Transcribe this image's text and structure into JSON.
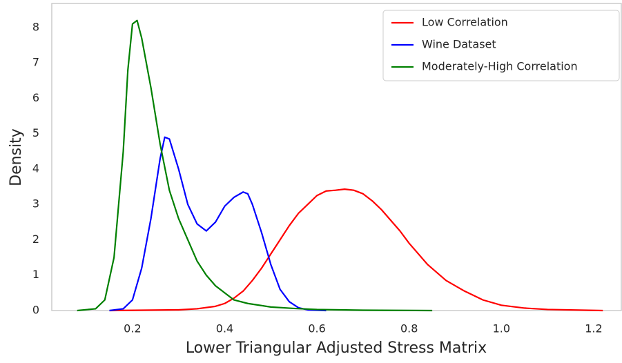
{
  "chart_data": {
    "type": "line",
    "xlabel": "Lower Triangular Adjusted Stress Matrix",
    "ylabel": "Density",
    "xlim": [
      0.025,
      1.26
    ],
    "ylim": [
      0,
      8.68
    ],
    "xticks": [
      0.2,
      0.4,
      0.6,
      0.8,
      {
        "value": 1,
        "label": "1.0"
      },
      1.2
    ],
    "yticks": [
      0,
      1,
      2,
      3,
      4,
      5,
      6,
      7,
      8
    ],
    "grid": false,
    "legend": "upper right",
    "series": [
      {
        "name": "Low Correlation",
        "color": "#ff0000",
        "x": [
          0.15,
          0.3,
          0.34,
          0.38,
          0.4,
          0.42,
          0.44,
          0.46,
          0.48,
          0.5,
          0.52,
          0.54,
          0.56,
          0.58,
          0.6,
          0.62,
          0.64,
          0.66,
          0.68,
          0.7,
          0.72,
          0.74,
          0.76,
          0.78,
          0.8,
          0.84,
          0.88,
          0.92,
          0.96,
          1.0,
          1.05,
          1.1,
          1.22
        ],
        "values": [
          0,
          0.02,
          0.05,
          0.12,
          0.2,
          0.35,
          0.55,
          0.85,
          1.2,
          1.6,
          2.0,
          2.4,
          2.75,
          3.0,
          3.25,
          3.38,
          3.4,
          3.43,
          3.4,
          3.3,
          3.1,
          2.85,
          2.55,
          2.25,
          1.9,
          1.3,
          0.85,
          0.55,
          0.3,
          0.15,
          0.07,
          0.03,
          0
        ]
      },
      {
        "name": "Wine Dataset",
        "color": "#0000ff",
        "x": [
          0.15,
          0.18,
          0.2,
          0.22,
          0.24,
          0.26,
          0.27,
          0.28,
          0.3,
          0.32,
          0.34,
          0.36,
          0.38,
          0.4,
          0.42,
          0.44,
          0.45,
          0.46,
          0.48,
          0.5,
          0.52,
          0.54,
          0.56,
          0.58,
          0.62
        ],
        "values": [
          0,
          0.05,
          0.3,
          1.2,
          2.6,
          4.3,
          4.9,
          4.85,
          4.0,
          3.0,
          2.45,
          2.25,
          2.5,
          2.95,
          3.2,
          3.35,
          3.3,
          3.0,
          2.2,
          1.3,
          0.6,
          0.25,
          0.08,
          0.02,
          0
        ]
      },
      {
        "name": "Moderately-High Correlation",
        "color": "#008000",
        "x": [
          0.08,
          0.12,
          0.14,
          0.16,
          0.18,
          0.19,
          0.2,
          0.21,
          0.22,
          0.24,
          0.26,
          0.28,
          0.3,
          0.32,
          0.34,
          0.36,
          0.38,
          0.4,
          0.42,
          0.45,
          0.5,
          0.55,
          0.6,
          0.7,
          0.85
        ],
        "values": [
          0,
          0.05,
          0.3,
          1.5,
          4.5,
          6.8,
          8.1,
          8.2,
          7.7,
          6.3,
          4.7,
          3.4,
          2.6,
          2.0,
          1.4,
          1.0,
          0.7,
          0.5,
          0.3,
          0.2,
          0.1,
          0.06,
          0.03,
          0.01,
          0
        ]
      }
    ]
  }
}
